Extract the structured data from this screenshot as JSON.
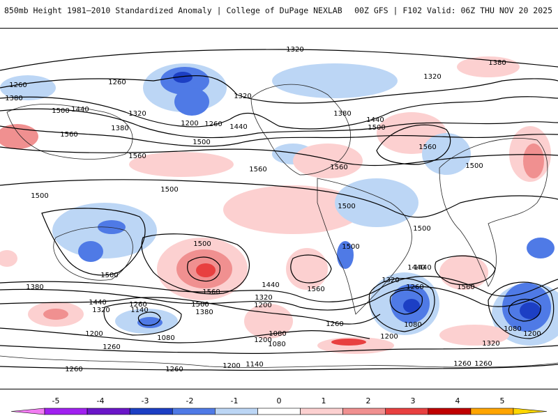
{
  "header": {
    "left": "850mb Height 1981–2010 Standardized Anomaly | College of DuPage NEXLAB",
    "right": "00Z GFS | F102 Valid: 06Z THU NOV 20 2025"
  },
  "contour_labels": [
    "1320",
    "1380",
    "1260",
    "1260",
    "1320",
    "1380",
    "1320",
    "1500",
    "1440",
    "1560",
    "1200",
    "1260",
    "1440",
    "1500",
    "1380",
    "1320",
    "1440",
    "1380",
    "1560",
    "1500",
    "1560",
    "1560",
    "1500",
    "1560",
    "1500",
    "1500",
    "1500",
    "1500",
    "1500",
    "1560",
    "1380",
    "1440",
    "1320",
    "1260",
    "1140",
    "1200",
    "1380",
    "1200",
    "1320",
    "1440",
    "1500",
    "1080",
    "1200",
    "1260",
    "1080",
    "1140",
    "1260",
    "1260",
    "1260",
    "1200",
    "1080",
    "1560",
    "1500",
    "1500",
    "1320",
    "1260",
    "1080",
    "1200",
    "1440",
    "1560",
    "1080",
    "1200",
    "1320",
    "1260",
    "1260",
    "1440"
  ],
  "colorbar": {
    "tick_labels": [
      "-5",
      "-4",
      "-3",
      "-2",
      "-1",
      "0",
      "1",
      "2",
      "3",
      "4",
      "5"
    ],
    "colors": [
      "#f27df2",
      "#a020f0",
      "#6a16c8",
      "#1c3fc4",
      "#4f7ae6",
      "#bcd6f5",
      "#ffffff",
      "#fcd0d0",
      "#f09090",
      "#e84040",
      "#c00000",
      "#ffa500",
      "#ffd700"
    ]
  }
}
